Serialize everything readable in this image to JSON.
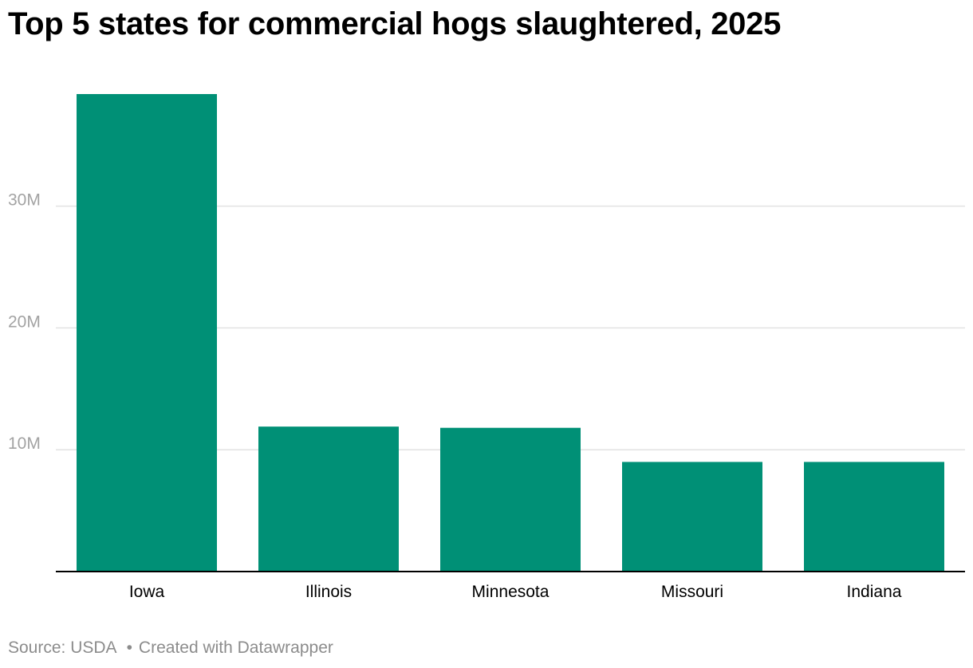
{
  "header": {
    "title": "Top 5 states for commercial hogs slaughtered, 2025"
  },
  "chart_data": {
    "type": "bar",
    "title": "Top 5 states for commercial hogs slaughtered, 2025",
    "categories": [
      "Iowa",
      "Illinois",
      "Minnesota",
      "Missouri",
      "Indiana"
    ],
    "values": [
      39200000,
      11900000,
      11800000,
      9000000,
      9000000
    ],
    "ylim": [
      0,
      39200000
    ],
    "yticks": [
      10000000,
      20000000,
      30000000
    ],
    "ytick_labels": [
      "10M",
      "20M",
      "30M"
    ],
    "xlabel": "",
    "ylabel": "",
    "grid": true,
    "bar_color": "#009076",
    "gridline_color": "#e2e2e2",
    "tick_label_color": "#a3a3a3"
  },
  "footer": {
    "source": "Source: USDA",
    "separator": "•",
    "credit": "Created with Datawrapper"
  }
}
